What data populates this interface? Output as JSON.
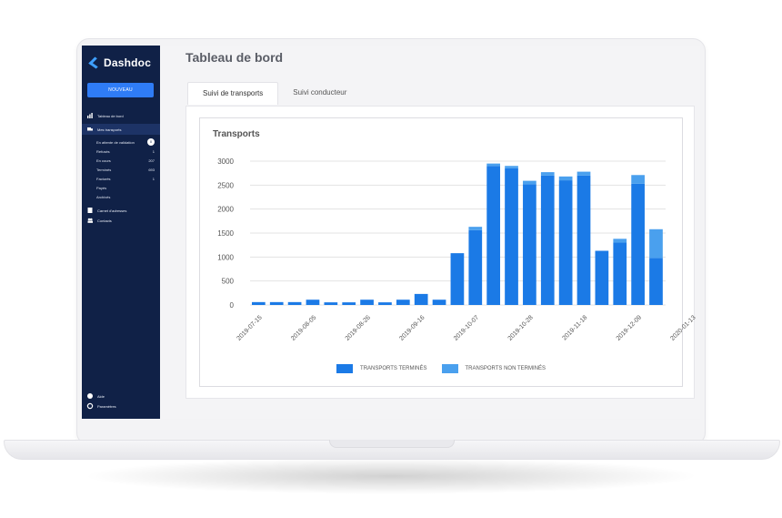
{
  "app": {
    "name": "Dashdoc"
  },
  "sidebar": {
    "new_button": "NOUVEAU",
    "items": [
      {
        "label": "Tableau de bord"
      },
      {
        "label": "Mes transports"
      }
    ],
    "subitems": [
      {
        "label": "En attente de validation",
        "count": "0"
      },
      {
        "label": "Refusés",
        "count": "1"
      },
      {
        "label": "En cours",
        "count": "207"
      },
      {
        "label": "Terminés",
        "count": "693"
      },
      {
        "label": "Facturés",
        "count": "1"
      },
      {
        "label": "Payés",
        "count": ""
      },
      {
        "label": "Archivés",
        "count": ""
      }
    ],
    "bottom_items": [
      {
        "label": "Carnet d'adresses"
      },
      {
        "label": "Contacts"
      }
    ],
    "footer": [
      {
        "label": "Aide"
      },
      {
        "label": "Paramètres"
      }
    ]
  },
  "main": {
    "title": "Tableau de bord",
    "tabs": [
      {
        "label": "Suivi de transports",
        "active": true
      },
      {
        "label": "Suivi conducteur",
        "active": false
      }
    ]
  },
  "colors": {
    "done": "#1b7ae6",
    "not_done": "#4aa0ee",
    "sidebar": "#102147",
    "accent": "#2f7cf6"
  },
  "chart_data": {
    "type": "bar",
    "title": "Transports",
    "stacked": true,
    "ylim": [
      0,
      3000
    ],
    "yticks": [
      0,
      500,
      1000,
      1500,
      2000,
      2500,
      3000
    ],
    "xtick_labels": [
      "2019-07-15",
      "2019-08-05",
      "2019-08-26",
      "2019-09-16",
      "2019-10-07",
      "2019-10-28",
      "2019-11-18",
      "2019-12-09",
      "2020-01-13"
    ],
    "categories": [
      "2019-07-15",
      "2019-07-22",
      "2019-07-29",
      "2019-08-05",
      "2019-08-12",
      "2019-08-19",
      "2019-08-26",
      "2019-09-02",
      "2019-09-09",
      "2019-09-16",
      "2019-09-23",
      "2019-09-30",
      "2019-10-07",
      "2019-10-14",
      "2019-10-21",
      "2019-10-28",
      "2019-11-04",
      "2019-11-11",
      "2019-11-18",
      "2019-11-25",
      "2019-12-02",
      "2019-12-09",
      "2019-12-16",
      "2019-12-23",
      "2020-01-06",
      "2020-01-13"
    ],
    "series": [
      {
        "name": "TRANSPORTS TERMINÉS",
        "values": [
          60,
          60,
          60,
          110,
          55,
          55,
          110,
          55,
          110,
          230,
          110,
          1080,
          1560,
          2900,
          2850,
          2520,
          2700,
          2600,
          2700,
          1130,
          1300,
          2530,
          980,
          0,
          0,
          0
        ]
      },
      {
        "name": "TRANSPORTS NON TERMINÉS",
        "values": [
          0,
          0,
          0,
          0,
          0,
          0,
          0,
          0,
          0,
          0,
          0,
          0,
          70,
          50,
          50,
          70,
          70,
          80,
          80,
          0,
          80,
          180,
          600,
          0,
          0,
          0
        ]
      }
    ],
    "legend_position": "bottom",
    "grid": true
  }
}
